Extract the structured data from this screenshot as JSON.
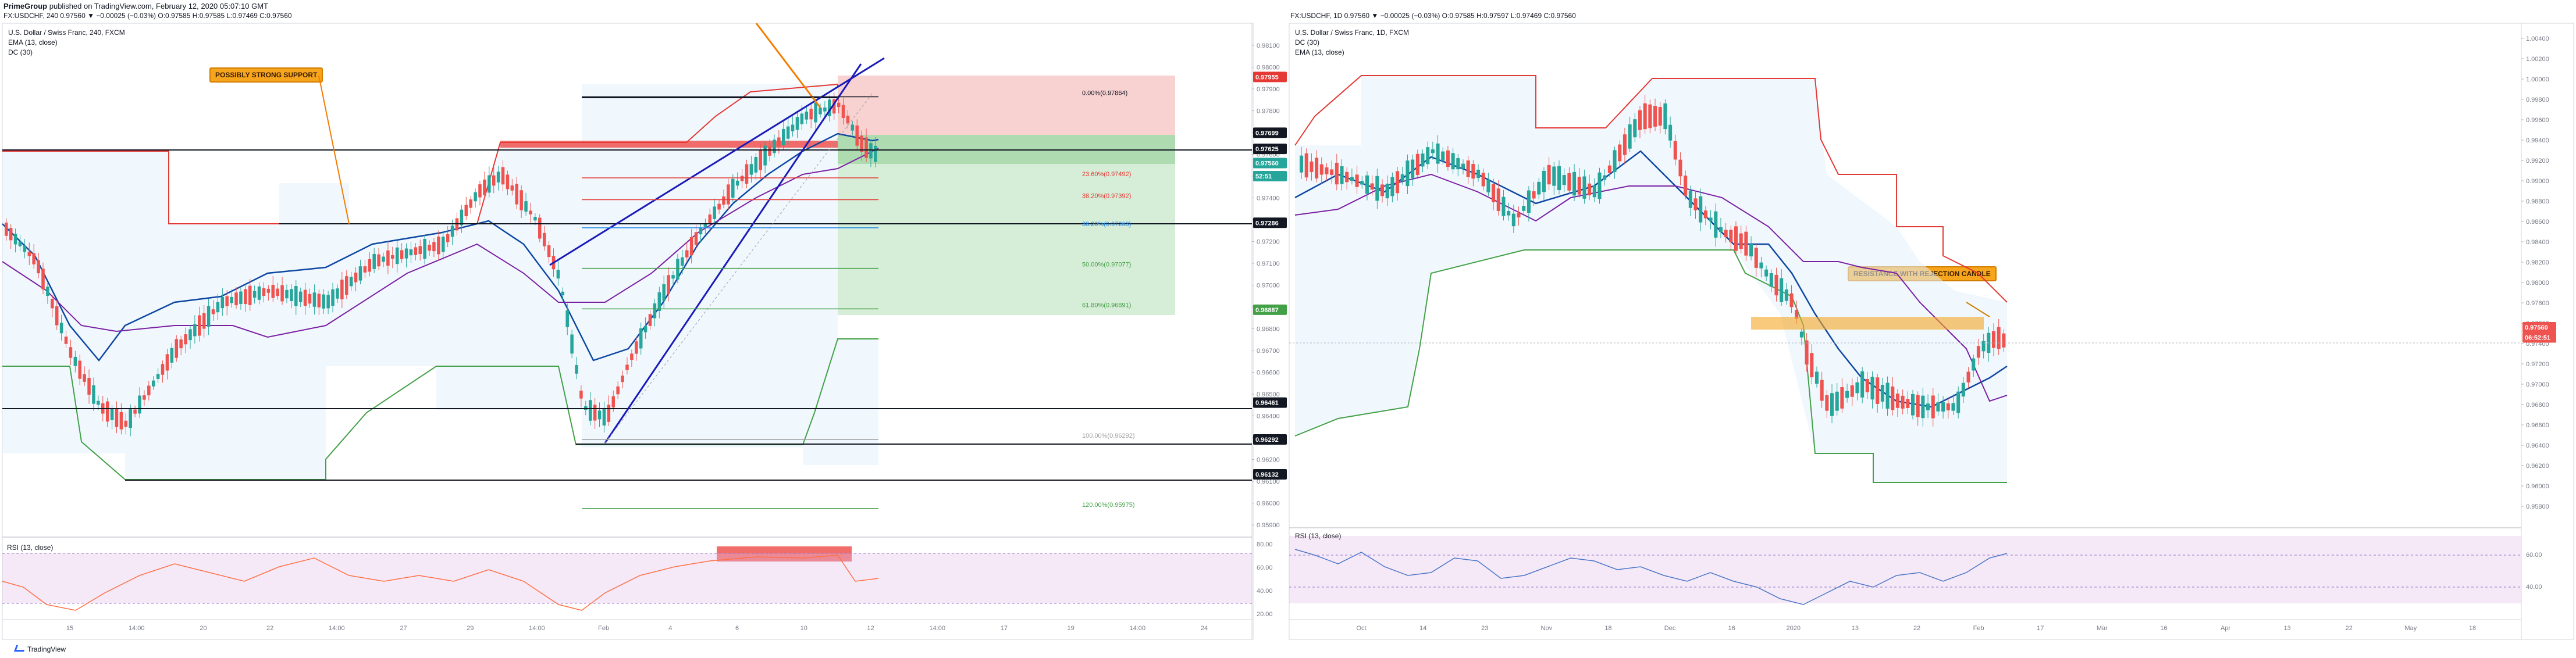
{
  "header": {
    "publisher": "PrimeGroup",
    "publish_note": " published on TradingView.com, February 12, 2020 05:07:10 GMT",
    "quote_line": "FX:USDCHF, 240  0.97560 ▼ −0.00025 (−0.03%)  O:0.97585  H:0.97585  L:0.97469  C:0.97560",
    "quote_line_right": "FX:USDCHF, 1D  0.97560 ▼ −0.00025 (−0.03%)  O:0.97585  H:0.97597  L:0.97469  C:0.97560"
  },
  "footer": {
    "brand": "TradingView"
  },
  "colors": {
    "up": "#26a69a",
    "down": "#ef5350",
    "dc_upper": "#e53935",
    "dc_lower": "#43a047",
    "ema": "#0d47a1",
    "ema2": "#7b1fa2",
    "rsi": "#ff7043",
    "rsi_bg": "#e1bee7"
  },
  "left_panel": {
    "title": "U.S. Dollar / Swiss Franc, 240, FXCM",
    "legend": [
      "EMA (13, close)",
      "DC (30)"
    ],
    "annotation": "POSSIBLY STRONG SUPPORT",
    "rsi_label": "RSI (13, close)",
    "price_ticks": [
      "0.98100",
      "0.98000",
      "0.97900",
      "0.97800",
      "0.97700",
      "0.97600",
      "0.97500",
      "0.97400",
      "0.97300",
      "0.97200",
      "0.97100",
      "0.97000",
      "0.96900",
      "0.96800",
      "0.96700",
      "0.96600",
      "0.96500",
      "0.96400",
      "0.96300",
      "0.96200",
      "0.96100",
      "0.96000",
      "0.95900"
    ],
    "price_badges": [
      {
        "label": "0.97955",
        "color": "#e53935",
        "price": 0.97955
      },
      {
        "label": "0.97699",
        "color": "#131722",
        "price": 0.97699
      },
      {
        "label": "0.97625",
        "color": "#131722",
        "price": 0.97625
      },
      {
        "label": "0.97560",
        "color": "#26a69a",
        "price": 0.9756
      },
      {
        "label": "52:51",
        "color": "#26a69a",
        "price": 0.975
      },
      {
        "label": "0.97286",
        "color": "#131722",
        "price": 0.97286
      },
      {
        "label": "0.96887",
        "color": "#43a047",
        "price": 0.96887
      },
      {
        "label": "0.96461",
        "color": "#131722",
        "price": 0.96461
      },
      {
        "label": "0.96292",
        "color": "#131722",
        "price": 0.96292
      },
      {
        "label": "0.96132",
        "color": "#131722",
        "price": 0.96132
      }
    ],
    "fib_levels": [
      {
        "label": "0.00%(0.97864)",
        "price": 0.97864,
        "color": "#131722"
      },
      {
        "label": "23.60%(0.97492)",
        "price": 0.97492,
        "color": "#e53935"
      },
      {
        "label": "38.20%(0.97392)",
        "price": 0.97392,
        "color": "#e53935"
      },
      {
        "label": "38.20%(0.97263)",
        "price": 0.97263,
        "color": "#1e88e5"
      },
      {
        "label": "50.00%(0.97077)",
        "price": 0.97077,
        "color": "#43a047"
      },
      {
        "label": "61.80%(0.96891)",
        "price": 0.96891,
        "color": "#43a047"
      },
      {
        "label": "100.00%(0.96292)",
        "price": 0.96292,
        "color": "#9e9e9e"
      },
      {
        "label": "120.00%(0.95975)",
        "price": 0.95975,
        "color": "#43a047"
      }
    ],
    "rsi_ticks": [
      "80.00",
      "60.00",
      "40.00",
      "20.00"
    ],
    "x_ticks": [
      "15",
      "14:00",
      "20",
      "22",
      "14:00",
      "27",
      "29",
      "14:00",
      "Feb",
      "4",
      "6",
      "10",
      "12",
      "14:00",
      "17",
      "19",
      "14:00",
      "24"
    ]
  },
  "right_panel": {
    "title": "U.S. Dollar / Swiss Franc, 1D, FXCM",
    "legend": [
      "DC (30)",
      "EMA (13, close)"
    ],
    "annotation": "RESISTANCE WITH REJECTION CANDLE",
    "rsi_label": "RSI (13, close)",
    "price_ticks": [
      "1.00400",
      "1.00200",
      "1.00000",
      "0.99800",
      "0.99600",
      "0.99400",
      "0.99200",
      "0.99000",
      "0.98800",
      "0.98600",
      "0.98400",
      "0.98200",
      "0.98000",
      "0.97800",
      "0.97600",
      "0.97400",
      "0.97200",
      "0.97000",
      "0.96800",
      "0.96600",
      "0.96400",
      "0.96200",
      "0.96000",
      "0.95800"
    ],
    "price_badges": [
      {
        "label": "0.97560",
        "color": "#ef5350",
        "price": 0.9756
      },
      {
        "label": "06:52:51",
        "color": "#ef5350",
        "price": 0.9746
      }
    ],
    "rsi_ticks": [
      "60.00",
      "40.00"
    ],
    "x_ticks": [
      "Oct",
      "14",
      "23",
      "Nov",
      "18",
      "Dec",
      "16",
      "2020",
      "13",
      "22",
      "Feb",
      "17",
      "Mar",
      "16",
      "Apr",
      "13",
      "22",
      "May",
      "18"
    ]
  }
}
